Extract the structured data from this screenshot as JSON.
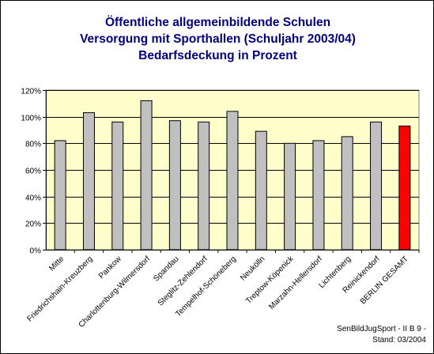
{
  "chart_data": {
    "type": "bar",
    "title_lines": [
      "Öffentliche allgemeinbildende Schulen",
      "Versorgung mit Sporthallen (Schuljahr 2003/04)",
      "Bedarfsdeckung in Prozent"
    ],
    "categories": [
      "Mitte",
      "Friedrichshain-Kreuzberg",
      "Pankow",
      "Charlottenburg-Wilmersdorf",
      "Spandau",
      "Steglitz-Zehlendorf",
      "Tempelhof-Schöneberg",
      "Neukölln",
      "Treptow-Köpenick",
      "Marzahn-Hellersdorf",
      "Lichtenberg",
      "Reinickendorf",
      "BERLIN GESAMT"
    ],
    "values": [
      82,
      103,
      96,
      112,
      97,
      96,
      104,
      89,
      80,
      82,
      85,
      96,
      93
    ],
    "y_tick_labels": [
      "0%",
      "20%",
      "40%",
      "60%",
      "80%",
      "100%",
      "120%"
    ],
    "ylim": [
      0,
      120
    ],
    "y_step": 20,
    "grid": true,
    "legend": "none",
    "colors": {
      "plot_background": "#FFFFCC",
      "bar": "#C0C0C0",
      "highlight_bar": "#FF0000",
      "title": "#000080"
    },
    "highlight_category": "BERLIN GESAMT",
    "footnote_lines": [
      "SenBildJugSport - II B 9 -",
      "Stand: 03/2004"
    ]
  }
}
